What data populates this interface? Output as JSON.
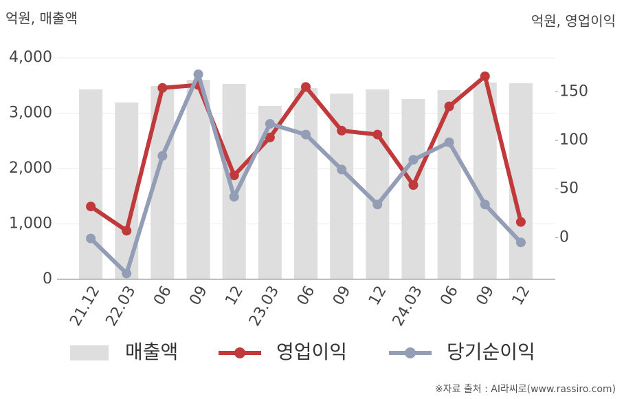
{
  "chart_data": {
    "type": "bar-line",
    "y_label": "억원, 매출액",
    "y2_label": "억원, 영업이익",
    "source": "※자료 출처 : AI라씨로(www.rassiro.com)",
    "categories": [
      "21.12",
      "22.03",
      "06",
      "09",
      "12",
      "23.03",
      "06",
      "09",
      "12",
      "24.03",
      "06",
      "09",
      "12"
    ],
    "series": [
      {
        "name": "매출액",
        "type": "bar",
        "color": "#dedede",
        "values": [
          3429,
          3193,
          3491,
          3602,
          3528,
          3130,
          3453,
          3354,
          3429,
          3255,
          3416,
          3553,
          3540
        ]
      },
      {
        "name": "영업이익",
        "type": "line",
        "axis": "y2",
        "color": "#c0393b",
        "values": [
          32,
          7,
          154,
          157,
          64,
          103,
          155,
          110,
          106,
          54,
          135,
          166,
          16
        ]
      },
      {
        "name": "당기순이익",
        "type": "line",
        "axis": "y2",
        "color": "#939db5",
        "values": [
          -1,
          -37,
          84,
          168,
          42,
          117,
          106,
          70,
          34,
          80,
          98,
          34,
          -5
        ]
      }
    ],
    "ylim": [
      0,
      4000
    ],
    "yticks": [
      0,
      {
        "value": 1000,
        "label": "1,000"
      },
      {
        "value": 2000,
        "label": "2,000"
      },
      {
        "value": 3000,
        "label": "3,000"
      },
      {
        "value": 4000,
        "label": "4,000"
      }
    ],
    "y2lim": [
      -43,
      185
    ],
    "y2ticks": [
      0,
      50,
      100,
      150
    ],
    "grid": true
  }
}
